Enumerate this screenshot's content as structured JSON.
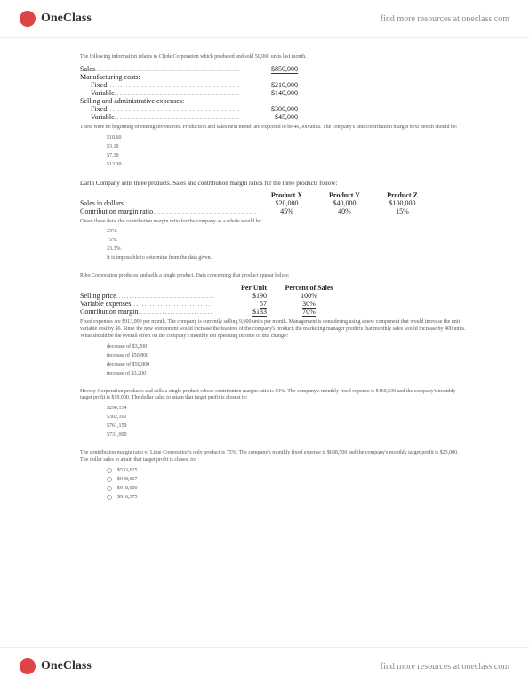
{
  "brand": {
    "name": "OneClass",
    "tagline": "find more resources at oneclass.com"
  },
  "q1": {
    "desc": "The following information relates to Clyde Corporation which produced and sold 50,000 units last month.",
    "rows": [
      {
        "label": "Sales",
        "val": "$850,000",
        "dots": true,
        "ul": true
      },
      {
        "label": "Manufacturing costs:",
        "val": ""
      },
      {
        "label": "Fixed",
        "val": "$210,000",
        "ind": true,
        "dots": true
      },
      {
        "label": "Variable",
        "val": "$140,000",
        "ind": true,
        "dots": true
      },
      {
        "label": "Selling and administrative expenses:",
        "val": ""
      },
      {
        "label": "Fixed",
        "val": "$300,000",
        "ind": true,
        "dots": true
      },
      {
        "label": "Variable",
        "val": "$45,000",
        "ind": true,
        "dots": true
      }
    ],
    "note": "There were no beginning or ending inventories. Production and sales next month are expected to be 40,000 units. The company's unit contribution margin next month should be:",
    "opts": [
      "$10.60",
      "$3.10",
      "$7.30",
      "$13.30"
    ]
  },
  "q2": {
    "desc": "Darth Company sells three products. Sales and contribution margin ratios for the three products follow:",
    "head": [
      "",
      "Product X",
      "Product Y",
      "Product Z"
    ],
    "r1": [
      "Sales in dollars",
      "$20,000",
      "$40,000",
      "$100,000"
    ],
    "r2": [
      "Contribution margin ratio",
      "45%",
      "40%",
      "15%"
    ],
    "note": "Given these data, the contribution margin ratio for the company as a whole would be:",
    "opts": [
      "25%.",
      "75%.",
      "33.3%.",
      "It is impossible to determine from the data given."
    ]
  },
  "q3": {
    "desc": "Ribo Corporation produces and sells a single product. Data concerning that product appear below:",
    "head": [
      "",
      "Per Unit",
      "Percent of Sales"
    ],
    "r1": [
      "Selling price",
      "$190",
      "100%"
    ],
    "r2": [
      "Variable expenses",
      "57",
      "30%"
    ],
    "r3": [
      "Contribution margin",
      "$133",
      "70%"
    ],
    "note": "Fixed expenses are $913,000 per month. The company is currently selling 9,000 units per month. Management is considering using a new component that would increase the unit variable cost by $6. Since the new component would increase the features of the company's product, the marketing manager predicts that monthly sales would increase by 400 units. What should be the overall effect on the company's monthly net operating income of this change?",
    "opts": [
      "decrease of $3,200",
      "increase of $50,800",
      "decrease of $50,800",
      "increase of $3,200"
    ]
  },
  "q4": {
    "desc": "Hevesy Corporation produces and sells a single product whose contribution margin ratio is 63%. The company's monthly fixed expense is $460,530 and the company's monthly target profit is $19,000. The dollar sales to attain that target profit is closest to:",
    "opts": [
      "$290,134",
      "$302,101",
      "$761,159",
      "$731,000"
    ]
  },
  "q5": {
    "desc": "The contribution margin ratio of Lime Corporation's only product is 75%. The company's monthly fixed expense is $688,500 and the company's monthly target profit is $23,000. The dollar sales to attain that target profit is closest to:",
    "opts": [
      "$533,625",
      "$948,667",
      "$918,000",
      "$916,375"
    ]
  }
}
